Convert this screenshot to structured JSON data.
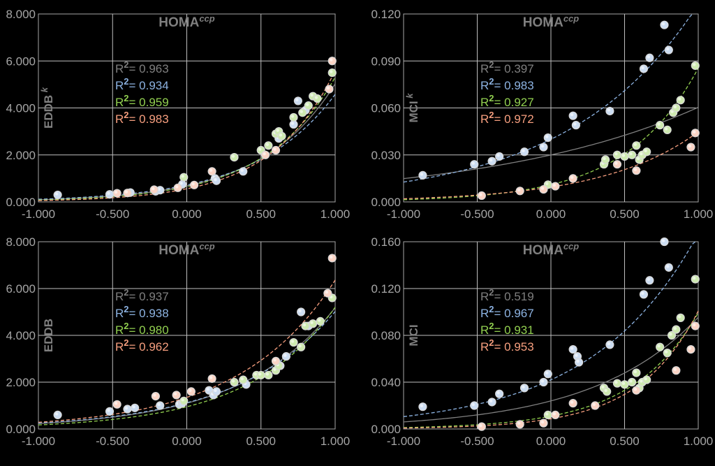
{
  "colors": {
    "gray": "#7f7f7f",
    "blue": "#8db3e2",
    "green": "#92d050",
    "orange": "#f79f7f"
  },
  "chart_data": [
    {
      "type": "scatter",
      "title": "HOMA",
      "title_sup": "ccp",
      "ylabel": "EDDB",
      "ylabel_sup": "k",
      "xlim": [
        -1,
        1
      ],
      "ylim": [
        0,
        8
      ],
      "xticks": [
        "-1.000",
        "-0.500",
        "0.000",
        "0.500",
        "1.000"
      ],
      "yticks": [
        "0.000",
        "2.000",
        "4.000",
        "6.000",
        "8.000"
      ],
      "r2": [
        {
          "color": "gray",
          "text": "= 0.963"
        },
        {
          "color": "blue",
          "text": "= 0.934"
        },
        {
          "color": "green",
          "text": "= 0.959"
        },
        {
          "color": "orange",
          "text": "= 0.983"
        }
      ],
      "fits": [
        {
          "color": "gray",
          "style": "solid",
          "a": 0.68,
          "b": 2.0
        },
        {
          "color": "blue",
          "style": "dashed",
          "a": 0.72,
          "b": 1.85
        },
        {
          "color": "green",
          "style": "dashed",
          "a": 0.65,
          "b": 2.1
        },
        {
          "color": "orange",
          "style": "dashed",
          "a": 0.56,
          "b": 2.3
        }
      ],
      "series": [
        {
          "color": "blue",
          "points": [
            [
              -0.87,
              0.3
            ],
            [
              -0.52,
              0.32
            ],
            [
              -0.38,
              0.4
            ],
            [
              -0.21,
              0.45
            ],
            [
              -0.18,
              0.5
            ],
            [
              -0.03,
              0.75
            ],
            [
              0.19,
              1.0
            ],
            [
              0.2,
              0.9
            ],
            [
              0.38,
              1.3
            ],
            [
              0.62,
              2.7
            ],
            [
              0.72,
              3.3
            ],
            [
              0.75,
              4.3
            ],
            [
              0.8,
              3.9
            ]
          ]
        },
        {
          "color": "green",
          "points": [
            [
              -0.02,
              1.05
            ],
            [
              0.32,
              1.9
            ],
            [
              0.5,
              2.2
            ],
            [
              0.55,
              2.4
            ],
            [
              0.6,
              2.9
            ],
            [
              0.62,
              3.0
            ],
            [
              0.64,
              2.8
            ],
            [
              0.72,
              3.6
            ],
            [
              0.78,
              3.8
            ],
            [
              0.82,
              4.1
            ],
            [
              0.85,
              4.5
            ],
            [
              0.88,
              4.4
            ],
            [
              0.98,
              5.5
            ]
          ]
        },
        {
          "color": "orange",
          "points": [
            [
              -0.47,
              0.37
            ],
            [
              -0.4,
              0.38
            ],
            [
              -0.22,
              0.52
            ],
            [
              -0.06,
              0.6
            ],
            [
              0.05,
              0.72
            ],
            [
              0.17,
              1.3
            ],
            [
              0.53,
              2.0
            ],
            [
              0.6,
              2.2
            ],
            [
              0.96,
              4.8
            ],
            [
              0.98,
              6.0
            ]
          ]
        }
      ]
    },
    {
      "type": "scatter",
      "title": "HOMA",
      "title_sup": "ccp",
      "ylabel": "MCI",
      "ylabel_sup": "k",
      "xlim": [
        -1,
        1
      ],
      "ylim": [
        0,
        0.12
      ],
      "xticks": [
        "-1.000",
        "-0.500",
        "0.000",
        "0.500",
        "1.000"
      ],
      "yticks": [
        "0.000",
        "0.030",
        "0.060",
        "0.090",
        "0.120"
      ],
      "r2": [
        {
          "color": "gray",
          "text": "= 0.397"
        },
        {
          "color": "blue",
          "text": "= 0.983"
        },
        {
          "color": "green",
          "text": "= 0.927"
        },
        {
          "color": "orange",
          "text": "= 0.972"
        }
      ],
      "fits": [
        {
          "color": "gray",
          "style": "solid",
          "a": 0.03,
          "b": 0.7
        },
        {
          "color": "blue",
          "style": "dashed",
          "a": 0.04,
          "b": 1.15
        },
        {
          "color": "green",
          "style": "dashed",
          "a": 0.011,
          "b": 2.05
        },
        {
          "color": "orange",
          "style": "dashed",
          "a": 0.0095,
          "b": 1.55
        }
      ],
      "series": [
        {
          "color": "blue",
          "points": [
            [
              -0.87,
              0.017
            ],
            [
              -0.52,
              0.024
            ],
            [
              -0.4,
              0.026
            ],
            [
              -0.35,
              0.029
            ],
            [
              -0.18,
              0.032
            ],
            [
              -0.05,
              0.035
            ],
            [
              -0.02,
              0.041
            ],
            [
              0.15,
              0.055
            ],
            [
              0.17,
              0.049
            ],
            [
              0.4,
              0.058
            ],
            [
              0.63,
              0.085
            ],
            [
              0.67,
              0.092
            ],
            [
              0.77,
              0.113
            ],
            [
              0.8,
              0.097
            ]
          ]
        },
        {
          "color": "green",
          "points": [
            [
              -0.02,
              0.011
            ],
            [
              0.36,
              0.024
            ],
            [
              0.37,
              0.027
            ],
            [
              0.45,
              0.03
            ],
            [
              0.5,
              0.029
            ],
            [
              0.55,
              0.03
            ],
            [
              0.58,
              0.036
            ],
            [
              0.6,
              0.027
            ],
            [
              0.62,
              0.03
            ],
            [
              0.65,
              0.032
            ],
            [
              0.74,
              0.049
            ],
            [
              0.79,
              0.046
            ],
            [
              0.83,
              0.057
            ],
            [
              0.85,
              0.06
            ],
            [
              0.88,
              0.065
            ],
            [
              0.98,
              0.087
            ]
          ]
        },
        {
          "color": "orange",
          "points": [
            [
              -0.47,
              0.004
            ],
            [
              -0.21,
              0.007
            ],
            [
              -0.05,
              0.008
            ],
            [
              0.03,
              0.01
            ],
            [
              0.15,
              0.015
            ],
            [
              0.45,
              0.024
            ],
            [
              0.58,
              0.02
            ],
            [
              0.95,
              0.035
            ],
            [
              0.98,
              0.044
            ]
          ]
        }
      ]
    },
    {
      "type": "scatter",
      "title": "HOMA",
      "title_sup": "ccp",
      "ylabel": "EDDB",
      "ylabel_sup": "",
      "xlim": [
        -1,
        1
      ],
      "ylim": [
        0,
        8
      ],
      "xticks": [
        "-1.000",
        "-0.500",
        "0.000",
        "0.500",
        "1.000"
      ],
      "yticks": [
        "0.000",
        "2.000",
        "4.000",
        "6.000",
        "8.000"
      ],
      "r2": [
        {
          "color": "gray",
          "text": "= 0.937"
        },
        {
          "color": "blue",
          "text": "= 0.938"
        },
        {
          "color": "green",
          "text": "= 0.980"
        },
        {
          "color": "orange",
          "text": "= 0.962"
        }
      ],
      "fits": [
        {
          "color": "gray",
          "style": "solid",
          "a": 1.1,
          "b": 1.55
        },
        {
          "color": "blue",
          "style": "dashed",
          "a": 1.12,
          "b": 1.5
        },
        {
          "color": "green",
          "style": "dashed",
          "a": 0.95,
          "b": 1.7
        },
        {
          "color": "orange",
          "style": "dashed",
          "a": 1.35,
          "b": 1.55
        }
      ],
      "series": [
        {
          "color": "blue",
          "points": [
            [
              -0.87,
              0.6
            ],
            [
              -0.52,
              0.75
            ],
            [
              -0.4,
              0.85
            ],
            [
              -0.35,
              0.9
            ],
            [
              -0.18,
              1.0
            ],
            [
              -0.05,
              1.05
            ],
            [
              -0.03,
              1.1
            ],
            [
              0.15,
              1.65
            ],
            [
              0.18,
              1.45
            ],
            [
              0.2,
              1.6
            ],
            [
              0.4,
              1.9
            ],
            [
              0.63,
              2.7
            ],
            [
              0.67,
              3.1
            ],
            [
              0.77,
              5.0
            ],
            [
              0.82,
              4.4
            ]
          ]
        },
        {
          "color": "green",
          "points": [
            [
              -0.02,
              1.2
            ],
            [
              0.32,
              2.0
            ],
            [
              0.38,
              2.1
            ],
            [
              0.47,
              2.3
            ],
            [
              0.5,
              2.3
            ],
            [
              0.55,
              2.3
            ],
            [
              0.6,
              2.5
            ],
            [
              0.62,
              2.7
            ],
            [
              0.72,
              3.7
            ],
            [
              0.77,
              3.5
            ],
            [
              0.8,
              4.4
            ],
            [
              0.85,
              4.5
            ],
            [
              0.9,
              4.6
            ],
            [
              0.98,
              5.6
            ]
          ]
        },
        {
          "color": "orange",
          "points": [
            [
              -0.47,
              1.05
            ],
            [
              -0.21,
              1.4
            ],
            [
              -0.07,
              1.45
            ],
            [
              0.03,
              1.6
            ],
            [
              0.17,
              2.15
            ],
            [
              0.6,
              2.9
            ],
            [
              0.95,
              5.8
            ],
            [
              0.98,
              7.3
            ]
          ]
        }
      ]
    },
    {
      "type": "scatter",
      "title": "HOMA",
      "title_sup": "ccp",
      "ylabel": "MCI",
      "ylabel_sup": "",
      "xlim": [
        -1,
        1
      ],
      "ylim": [
        0,
        0.16
      ],
      "xticks": [
        "-1.000",
        "-0.500",
        "0.000",
        "0.500",
        "1.000"
      ],
      "yticks": [
        "0.000",
        "0.040",
        "0.080",
        "0.120",
        "0.160"
      ],
      "r2": [
        {
          "color": "gray",
          "text": "= 0.519"
        },
        {
          "color": "blue",
          "text": "= 0.967"
        },
        {
          "color": "green",
          "text": "= 0.931"
        },
        {
          "color": "orange",
          "text": "= 0.953"
        }
      ],
      "fits": [
        {
          "color": "gray",
          "style": "solid",
          "a": 0.024,
          "b": 1.38
        },
        {
          "color": "blue",
          "style": "dashed",
          "a": 0.042,
          "b": 1.38
        },
        {
          "color": "green",
          "style": "dashed",
          "a": 0.011,
          "b": 2.2
        },
        {
          "color": "orange",
          "style": "dashed",
          "a": 0.0087,
          "b": 2.45
        }
      ],
      "series": [
        {
          "color": "blue",
          "points": [
            [
              -0.87,
              0.019
            ],
            [
              -0.52,
              0.02
            ],
            [
              -0.4,
              0.023
            ],
            [
              -0.35,
              0.03
            ],
            [
              -0.18,
              0.035
            ],
            [
              -0.05,
              0.04
            ],
            [
              -0.02,
              0.047
            ],
            [
              0.15,
              0.068
            ],
            [
              0.18,
              0.062
            ],
            [
              0.19,
              0.057
            ],
            [
              0.4,
              0.072
            ],
            [
              0.63,
              0.115
            ],
            [
              0.67,
              0.127
            ],
            [
              0.77,
              0.16
            ],
            [
              0.8,
              0.138
            ]
          ]
        },
        {
          "color": "green",
          "points": [
            [
              -0.02,
              0.012
            ],
            [
              0.36,
              0.035
            ],
            [
              0.38,
              0.032
            ],
            [
              0.45,
              0.039
            ],
            [
              0.5,
              0.038
            ],
            [
              0.55,
              0.04
            ],
            [
              0.58,
              0.048
            ],
            [
              0.6,
              0.035
            ],
            [
              0.62,
              0.04
            ],
            [
              0.65,
              0.042
            ],
            [
              0.74,
              0.07
            ],
            [
              0.79,
              0.065
            ],
            [
              0.82,
              0.08
            ],
            [
              0.85,
              0.085
            ],
            [
              0.88,
              0.095
            ],
            [
              0.98,
              0.128
            ]
          ]
        },
        {
          "color": "orange",
          "points": [
            [
              -0.47,
              0.002
            ],
            [
              -0.21,
              0.004
            ],
            [
              -0.05,
              0.005
            ],
            [
              0.03,
              0.012
            ],
            [
              0.15,
              0.022
            ],
            [
              0.3,
              0.02
            ],
            [
              0.58,
              0.033
            ],
            [
              0.85,
              0.05
            ],
            [
              0.95,
              0.068
            ],
            [
              0.98,
              0.088
            ]
          ]
        }
      ]
    }
  ]
}
